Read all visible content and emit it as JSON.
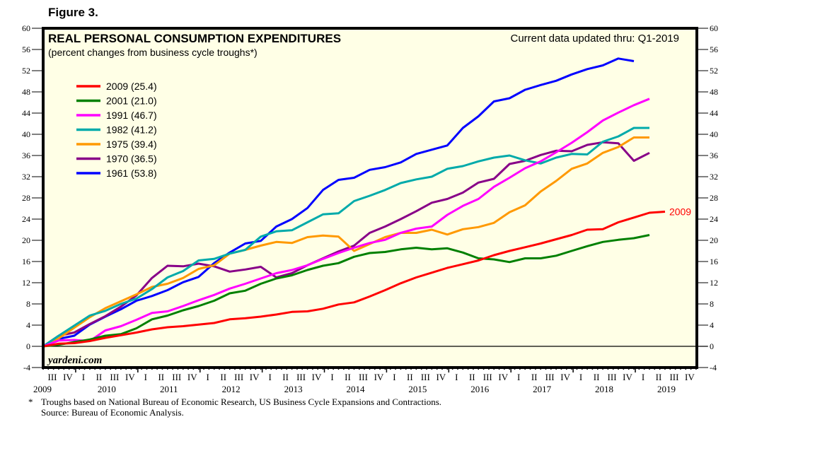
{
  "figure_label": "Figure 3.",
  "footnote": "Troughs based on National Bureau of Economic Research, US Business Cycle Expansions and Contractions.",
  "footnote_marker": "*",
  "source": "Source: Bureau of Economic Analysis.",
  "chart_data": {
    "type": "line",
    "title": "REAL PERSONAL CONSUMPTION EXPENDITURES",
    "subtitle": "(percent changes from business cycle troughs*)",
    "annotation_updated": "Current data updated thru: Q1-2019",
    "watermark": "yardeni.com",
    "end_label": "2009",
    "xlabel": "",
    "ylabel": "",
    "ylim": [
      -4,
      60
    ],
    "yticks": [
      -4,
      0,
      4,
      8,
      12,
      16,
      20,
      24,
      28,
      32,
      36,
      40,
      44,
      48,
      52,
      56,
      60
    ],
    "x_quarter_labels": [
      "III",
      "IV",
      "I",
      "II",
      "III",
      "IV",
      "I",
      "II",
      "III",
      "IV",
      "I",
      "II",
      "III",
      "IV",
      "I",
      "II",
      "III",
      "IV",
      "I",
      "II",
      "III",
      "IV",
      "I",
      "II",
      "III",
      "IV",
      "I",
      "II",
      "III",
      "IV",
      "I",
      "II",
      "III",
      "IV",
      "I",
      "II",
      "III",
      "IV",
      "I",
      "II",
      "III",
      "IV"
    ],
    "x_year_labels": [
      "2009",
      "2010",
      "2011",
      "2012",
      "2013",
      "2014",
      "2015",
      "2016",
      "2017",
      "2018",
      "2019"
    ],
    "x_axis_start": "Q2-2009",
    "x_axis_end": "Q4-2019",
    "legend_position": "top-left",
    "grid": false,
    "series": [
      {
        "name": "2009 (25.4)",
        "color": "#ff0000",
        "values": [
          0,
          0.5,
          0.6,
          1.0,
          1.6,
          2.1,
          2.6,
          3.2,
          3.6,
          3.8,
          4.1,
          4.4,
          5.1,
          5.3,
          5.6,
          6.0,
          6.5,
          6.6,
          7.1,
          7.9,
          8.3,
          9.4,
          10.6,
          11.9,
          13.0,
          13.9,
          14.8,
          15.5,
          16.2,
          17.2,
          18.0,
          18.7,
          19.4,
          20.2,
          21.0,
          22.0,
          22.1,
          23.4,
          24.3,
          25.2,
          25.4
        ]
      },
      {
        "name": "2001 (21.0)",
        "color": "#008000",
        "values": [
          0,
          0.3,
          0.8,
          1.3,
          2.0,
          2.3,
          3.4,
          5.1,
          5.8,
          6.8,
          7.6,
          8.6,
          10.0,
          10.5,
          11.8,
          12.8,
          13.4,
          14.4,
          15.2,
          15.7,
          16.9,
          17.6,
          17.8,
          18.3,
          18.6,
          18.3,
          18.5,
          17.7,
          16.6,
          16.4,
          15.9,
          16.6,
          16.6,
          17.1,
          18.0,
          18.9,
          19.7,
          20.1,
          20.4,
          21.0
        ]
      },
      {
        "name": "1991 (46.7)",
        "color": "#ff00ff",
        "values": [
          0,
          1.1,
          1.2,
          1.0,
          3.0,
          3.8,
          5.0,
          6.3,
          6.6,
          7.6,
          8.7,
          9.7,
          10.9,
          11.8,
          12.8,
          13.8,
          14.4,
          15.3,
          16.5,
          17.6,
          18.6,
          19.5,
          20.1,
          21.4,
          22.2,
          22.6,
          24.8,
          26.5,
          27.8,
          30.1,
          31.8,
          33.6,
          34.9,
          36.6,
          38.4,
          40.4,
          42.6,
          44.1,
          45.5,
          46.7
        ]
      },
      {
        "name": "1982 (41.2)",
        "color": "#00aaaa",
        "values": [
          0,
          2.0,
          3.9,
          5.8,
          6.7,
          8.0,
          9.0,
          10.8,
          13.0,
          14.2,
          16.2,
          16.5,
          17.5,
          18.2,
          20.7,
          21.7,
          21.9,
          23.4,
          24.9,
          25.1,
          27.4,
          28.4,
          29.5,
          30.8,
          31.5,
          32.0,
          33.5,
          34.0,
          34.9,
          35.6,
          36.0,
          35.1,
          34.5,
          35.6,
          36.3,
          36.2,
          38.6,
          39.6,
          41.2,
          41.2
        ]
      },
      {
        "name": "1975 (39.4)",
        "color": "#ff9900",
        "values": [
          0,
          1.5,
          3.5,
          5.5,
          7.2,
          8.5,
          9.8,
          11.2,
          11.8,
          12.9,
          14.6,
          15.3,
          17.5,
          18.2,
          19.0,
          19.7,
          19.5,
          20.6,
          20.9,
          20.7,
          18.0,
          19.3,
          20.6,
          21.4,
          21.4,
          22.0,
          21.1,
          22.1,
          22.5,
          23.3,
          25.3,
          26.6,
          29.2,
          31.2,
          33.5,
          34.5,
          36.5,
          37.6,
          39.4,
          39.4
        ]
      },
      {
        "name": "1970 (36.5)",
        "color": "#880088",
        "values": [
          0,
          2.0,
          2.6,
          4.2,
          5.7,
          7.5,
          9.6,
          12.9,
          15.2,
          15.1,
          15.6,
          15.1,
          14.1,
          14.5,
          15.0,
          13.0,
          13.8,
          15.3,
          16.6,
          17.9,
          19.0,
          21.4,
          22.6,
          24.0,
          25.5,
          27.1,
          27.8,
          29.0,
          30.9,
          31.6,
          34.4,
          35.0,
          36.1,
          36.9,
          36.8,
          38.0,
          38.5,
          38.3,
          35.0,
          36.5
        ]
      },
      {
        "name": "1961 (53.8)",
        "color": "#0000ff",
        "values": [
          0,
          1.4,
          2.0,
          4.1,
          5.6,
          7.0,
          8.6,
          9.5,
          10.6,
          12.1,
          13.1,
          15.7,
          17.7,
          19.4,
          19.9,
          22.6,
          24.0,
          26.1,
          29.5,
          31.4,
          31.8,
          33.3,
          33.8,
          34.7,
          36.3,
          37.1,
          37.9,
          41.2,
          43.4,
          46.2,
          46.8,
          48.4,
          49.3,
          50.1,
          51.3,
          52.3,
          53.0,
          54.3,
          53.8
        ]
      }
    ]
  }
}
